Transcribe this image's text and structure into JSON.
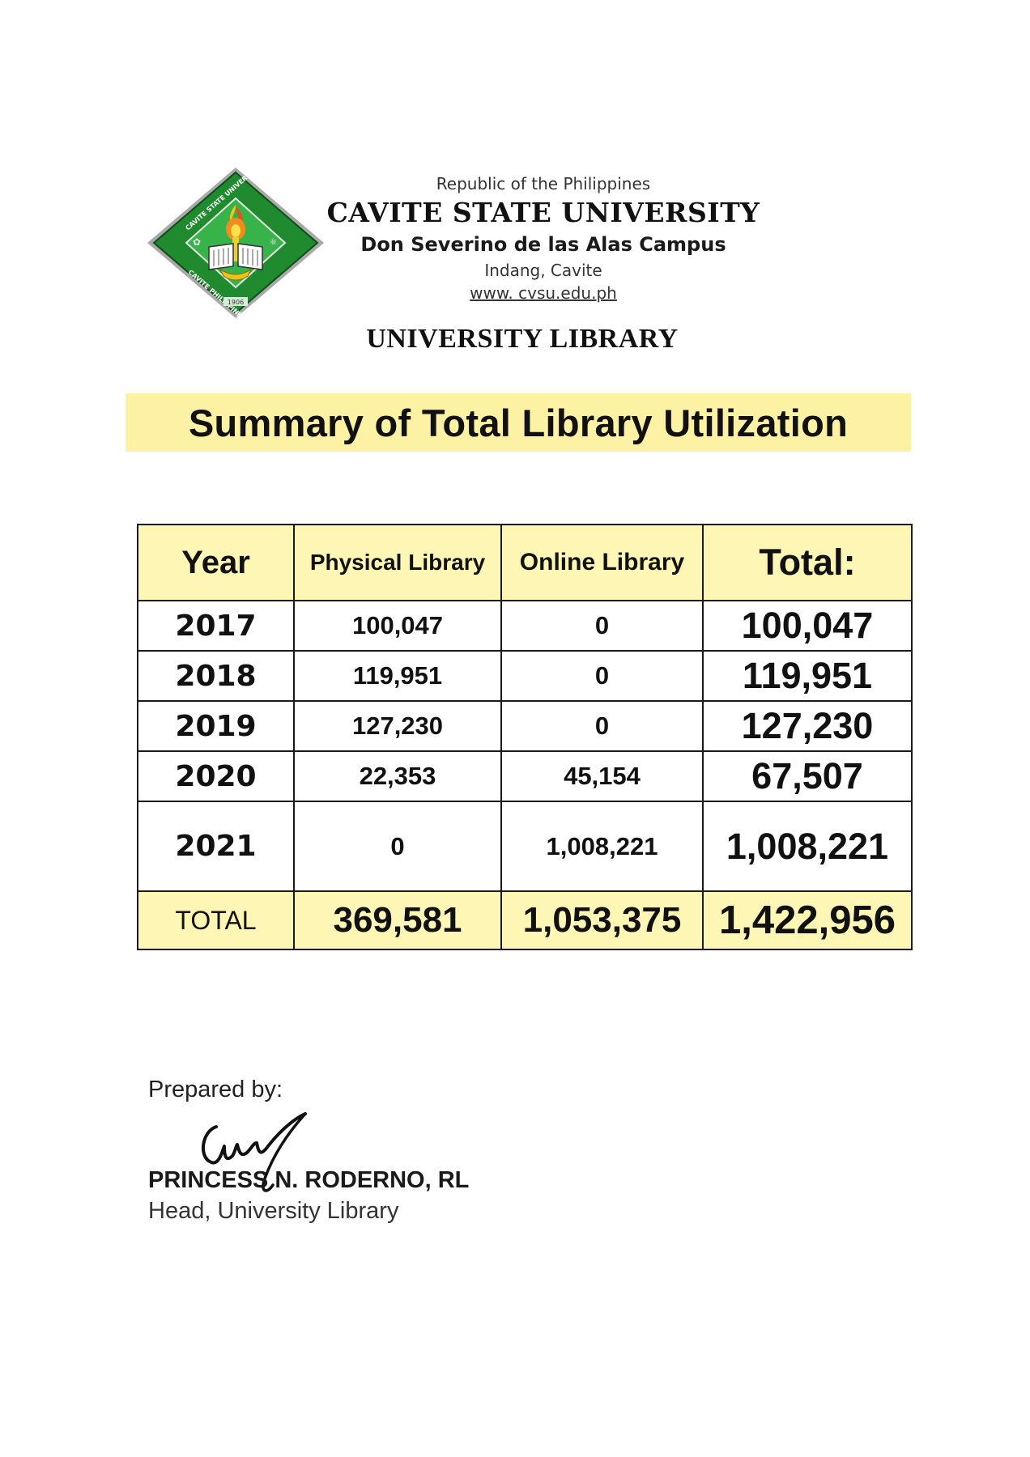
{
  "logo": {
    "icon": "university-seal-icon",
    "ring_text_top": "CAVITE STATE UNIVERSITY",
    "ring_text_bottom": "CAVITE PHILIPPINES",
    "year": "1906",
    "colors": {
      "ring": "#1f8a2e",
      "inner": "#2fb34a",
      "flame": "#f28a1e"
    }
  },
  "header": {
    "republic": "Republic of the Philippines",
    "university": "CAVITE STATE UNIVERSITY",
    "campus": "Don Severino de las Alas Campus",
    "town": "Indang, Cavite",
    "url": "www. cvsu.edu.ph"
  },
  "library_title": "UNIVERSITY LIBRARY",
  "banner_title": "Summary of Total Library Utilization",
  "table": {
    "headers": {
      "year": "Year",
      "physical": "Physical Library",
      "online": "Online Library",
      "total": "Total:"
    },
    "rows": [
      {
        "year": "2017",
        "physical": "100,047",
        "online": "0",
        "total": "100,047"
      },
      {
        "year": "2018",
        "physical": "119,951",
        "online": "0",
        "total": "119,951"
      },
      {
        "year": "2019",
        "physical": "127,230",
        "online": "0",
        "total": "127,230"
      },
      {
        "year": "2020",
        "physical": "22,353",
        "online": "45,154",
        "total": "67,507"
      },
      {
        "year": "2021",
        "physical": "0",
        "online": "1,008,221",
        "total": "1,008,221"
      }
    ],
    "totals": {
      "label": "TOTAL",
      "physical": "369,581",
      "online": "1,053,375",
      "total": "1,422,956"
    }
  },
  "signature_block": {
    "prepared_by": "Prepared by:",
    "signature_icon": "handwritten-signature-icon",
    "name": "PRINCESS N. RODERNO, RL",
    "position": "Head, University Library"
  }
}
